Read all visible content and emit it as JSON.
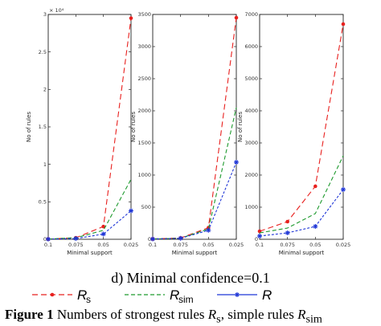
{
  "chart_data": [
    {
      "type": "line",
      "categories": [
        "0.1",
        "0.075",
        "0.05",
        "0.025"
      ],
      "exponent_label": "× 10⁴",
      "ylabel": "No of rules",
      "xlabel": "Minimal support",
      "ylim": [
        0,
        3
      ],
      "yticks": [
        "0",
        "0.5",
        "1",
        "1.5",
        "2",
        "2.5",
        "3"
      ],
      "series": [
        {
          "name": "Rs",
          "color": "#e8201e",
          "dash": "7,4",
          "marker": "dot",
          "values": [
            0.003,
            0.02,
            0.17,
            2.95
          ]
        },
        {
          "name": "Rsim",
          "color": "#1e9a2e",
          "dash": "5,3",
          "marker": "none",
          "values": [
            0.003,
            0.02,
            0.12,
            0.8
          ]
        },
        {
          "name": "R",
          "color": "#1f36d6",
          "dash": "3,2",
          "marker": "star",
          "values": [
            0.002,
            0.01,
            0.07,
            0.38
          ]
        }
      ]
    },
    {
      "type": "line",
      "categories": [
        "0.1",
        "0.075",
        "0.05",
        "0.025"
      ],
      "ylabel": "No of rules",
      "xlabel": "Minimal support",
      "ylim": [
        0,
        3500
      ],
      "yticks": [
        "0",
        "500",
        "1000",
        "1500",
        "2000",
        "2500",
        "3000",
        "3500"
      ],
      "series": [
        {
          "name": "Rs",
          "color": "#e8201e",
          "dash": "7,4",
          "marker": "dot",
          "values": [
            5,
            20,
            180,
            3450
          ]
        },
        {
          "name": "Rsim",
          "color": "#1e9a2e",
          "dash": "5,3",
          "marker": "none",
          "values": [
            5,
            18,
            160,
            2050
          ]
        },
        {
          "name": "R",
          "color": "#1f36d6",
          "dash": "3,2",
          "marker": "star",
          "values": [
            5,
            15,
            140,
            1200
          ]
        }
      ]
    },
    {
      "type": "line",
      "categories": [
        "0.1",
        "0.075",
        "0.05",
        "0.025"
      ],
      "ylabel": "No of rules",
      "xlabel": "Minimal support",
      "ylim": [
        0,
        7000
      ],
      "yticks": [
        "0",
        "1000",
        "2000",
        "3000",
        "4000",
        "5000",
        "6000",
        "7000"
      ],
      "series": [
        {
          "name": "Rs",
          "color": "#e8201e",
          "dash": "7,4",
          "marker": "dot",
          "values": [
            250,
            550,
            1650,
            6700
          ]
        },
        {
          "name": "Rsim",
          "color": "#1e9a2e",
          "dash": "5,3",
          "marker": "none",
          "values": [
            200,
            350,
            800,
            2600
          ]
        },
        {
          "name": "R",
          "color": "#1f36d6",
          "dash": "3,2",
          "marker": "star",
          "values": [
            100,
            200,
            400,
            1550
          ]
        }
      ]
    }
  ],
  "subcaption": "d) Minimal confidence=0.1",
  "legend": [
    {
      "main": "R",
      "sub": "s",
      "color": "#e8201e",
      "dash": "7,4",
      "marker": "dot"
    },
    {
      "main": "R",
      "sub": "sim",
      "color": "#1e9a2e",
      "dash": "5,3",
      "marker": "none"
    },
    {
      "main": "R",
      "sub": "",
      "color": "#1f36d6",
      "dash": "",
      "marker": "star"
    }
  ],
  "caption": {
    "label": "Figure 1",
    "text_a": " Numbers of strongest rules ",
    "var1": "R",
    "var1_sub": "s",
    "text_b": ", simple rules ",
    "var2": "R",
    "var2_sub": "sim"
  }
}
